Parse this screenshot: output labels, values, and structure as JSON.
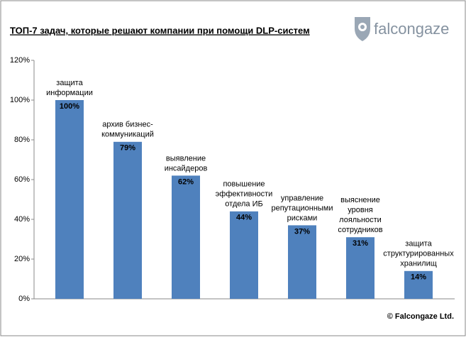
{
  "chart_data": {
    "type": "bar",
    "title": "ТОП-7 задач, которые решают компании при помощи DLP-систем",
    "brand": "falcongaze",
    "footer": "© Falcongaze Ltd.",
    "categories": [
      [
        "защита",
        "информации"
      ],
      [
        "архив бизнес-",
        "коммуникаций"
      ],
      [
        "выявление",
        "инсайдеров"
      ],
      [
        "повышение",
        "эффективности",
        "отдела ИБ"
      ],
      [
        "управление",
        "репутационными",
        "рисками"
      ],
      [
        "выяснение",
        "уровня",
        "лояльности",
        "сотрудников"
      ],
      [
        "защита",
        "структурированных",
        "хранилищ"
      ]
    ],
    "values": [
      100,
      79,
      62,
      44,
      37,
      31,
      14
    ],
    "value_labels": [
      "100%",
      "79%",
      "62%",
      "44%",
      "37%",
      "31%",
      "14%"
    ],
    "color": "#4f81bd",
    "ylim": [
      0,
      120
    ],
    "yticks": [
      {
        "value": 0,
        "label": "0%"
      },
      {
        "value": 20,
        "label": "20%"
      },
      {
        "value": 40,
        "label": "40%"
      },
      {
        "value": 60,
        "label": "60%"
      },
      {
        "value": 80,
        "label": "80%"
      },
      {
        "value": 100,
        "label": "100%"
      },
      {
        "value": 120,
        "label": "120%"
      }
    ]
  }
}
